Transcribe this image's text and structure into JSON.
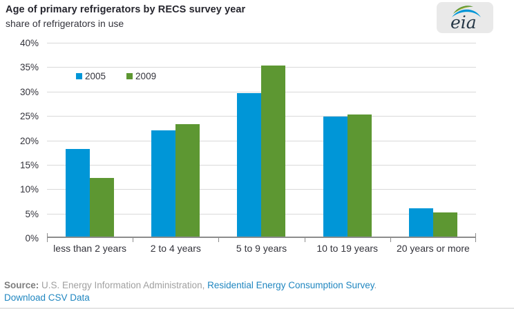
{
  "header": {
    "title": "Age of primary refrigerators by RECS survey year",
    "subtitle": "share of refrigerators in use",
    "logo_text": "eia"
  },
  "chart_data": {
    "type": "bar",
    "categories": [
      "less than 2 years",
      "2 to 4 years",
      "5 to 9 years",
      "10 to 19 years",
      "20 years or more"
    ],
    "series": [
      {
        "name": "2005",
        "color": "#0096d7",
        "values": [
          18.0,
          21.7,
          29.4,
          24.6,
          5.8
        ]
      },
      {
        "name": "2009",
        "color": "#5d9732",
        "values": [
          12.0,
          23.0,
          35.0,
          25.0,
          5.0
        ]
      }
    ],
    "ylabel": "share of refrigerators in use",
    "ylim": [
      0,
      40
    ],
    "ytick_step": 5,
    "ytick_labels": [
      "40%",
      "35%",
      "30%",
      "25%",
      "20%",
      "15%",
      "10%",
      "5%",
      "0%"
    ],
    "grid": true,
    "legend_position": "top-left-inside"
  },
  "footer": {
    "source_label": "Source:",
    "source_text": " U.S. Energy Information Administration, ",
    "source_link": "Residential Energy Consumption Survey",
    "source_suffix": ".",
    "download_link": "Download CSV Data"
  },
  "colors": {
    "blue": "#0096d7",
    "green": "#5d9732",
    "gridline": "#d9d9d9",
    "axis": "#8c8c8c",
    "link": "#1f86c0",
    "logo_bg": "#e9e9e9"
  }
}
